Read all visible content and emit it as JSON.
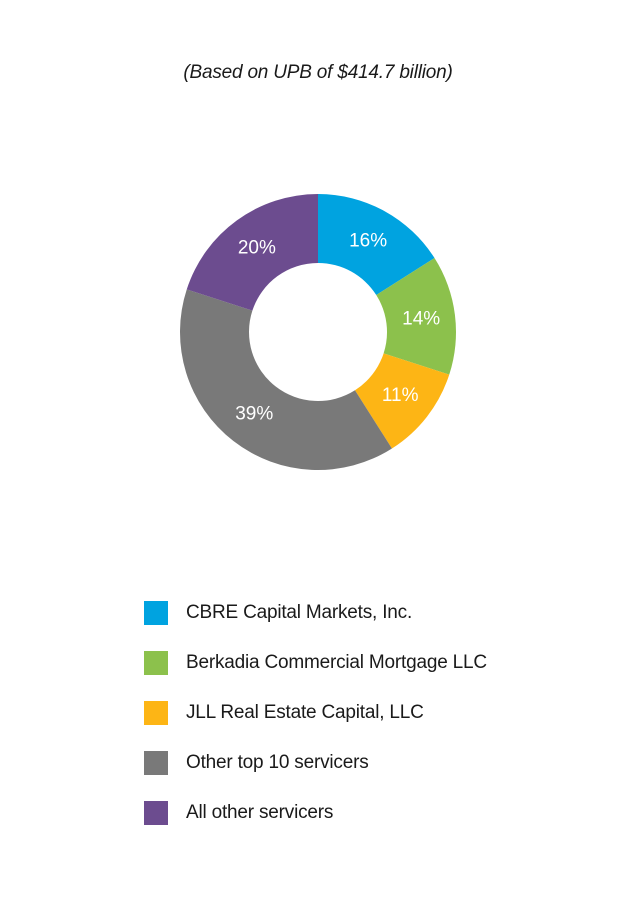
{
  "subtitle": "(Based on UPB of $414.7 billion)",
  "chart_data": {
    "type": "pie",
    "subtitle": "(Based on UPB of $414.7 billion)",
    "donut": true,
    "slices": [
      {
        "name": "CBRE Capital Markets, Inc.",
        "value": 16,
        "label": "16%",
        "color": "#00a3e0"
      },
      {
        "name": "Berkadia Commercial Mortgage LLC",
        "value": 14,
        "label": "14%",
        "color": "#8cc14c"
      },
      {
        "name": "JLL Real Estate Capital, LLC",
        "value": 11,
        "label": "11%",
        "color": "#fdb515"
      },
      {
        "name": "Other top 10 servicers",
        "value": 39,
        "label": "39%",
        "color": "#797979"
      },
      {
        "name": "All other servicers",
        "value": 20,
        "label": "20%",
        "color": "#6c4c8f"
      }
    ],
    "legend_position": "bottom"
  }
}
